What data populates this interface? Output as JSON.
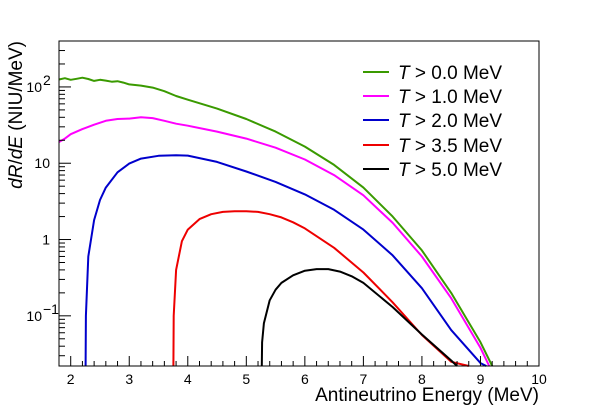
{
  "chart_data": {
    "type": "line",
    "xlabel": "Antineutrino Energy (MeV)",
    "ylabel_parts": {
      "numerator": "dR",
      "slash": "/",
      "denominator": "dE",
      "unit": "(NIU/MeV)"
    },
    "xlim": [
      1.8,
      10.0
    ],
    "ylim": [
      0.022,
      400
    ],
    "yscale": "log",
    "grid": false,
    "legend_position": "top-right",
    "x_ticks": [
      {
        "value": 2,
        "label": "2"
      },
      {
        "value": 3,
        "label": "3"
      },
      {
        "value": 4,
        "label": "4"
      },
      {
        "value": 5,
        "label": "5"
      },
      {
        "value": 6,
        "label": "6"
      },
      {
        "value": 7,
        "label": "7"
      },
      {
        "value": 8,
        "label": "8"
      },
      {
        "value": 9,
        "label": "9"
      },
      {
        "value": 10,
        "label": "10"
      }
    ],
    "y_ticks": [
      {
        "value": 100,
        "base": "10",
        "exp": "2"
      },
      {
        "value": 10,
        "base": "10",
        "exp": ""
      },
      {
        "value": 1,
        "base": "1",
        "exp": ""
      },
      {
        "value": 0.1,
        "base": "10",
        "exp": "−1"
      }
    ],
    "series": [
      {
        "legend_var": "T",
        "legend_rest": " > 0.0 MeV",
        "color": "#3a9a00",
        "x": [
          1.8,
          1.9,
          2.0,
          2.1,
          2.2,
          2.3,
          2.4,
          2.5,
          2.6,
          2.7,
          2.8,
          2.9,
          3.0,
          3.2,
          3.4,
          3.6,
          3.8,
          4.0,
          4.5,
          5.0,
          5.5,
          6.0,
          6.5,
          7.0,
          7.5,
          8.0,
          8.5,
          9.0,
          9.2
        ],
        "y": [
          125,
          130,
          124,
          128,
          132,
          127,
          120,
          124,
          121,
          117,
          119,
          114,
          108,
          104,
          98,
          88,
          76,
          68,
          52,
          38,
          26,
          16.5,
          9.5,
          4.8,
          2.0,
          0.72,
          0.2,
          0.045,
          0.022
        ]
      },
      {
        "legend_var": "T",
        "legend_rest": " > 1.0 MeV",
        "color": "#ff00ff",
        "x": [
          1.8,
          1.9,
          2.0,
          2.2,
          2.4,
          2.6,
          2.8,
          3.0,
          3.2,
          3.4,
          3.6,
          3.8,
          4.0,
          4.5,
          5.0,
          5.5,
          6.0,
          6.5,
          7.0,
          7.5,
          8.0,
          8.5,
          9.0,
          9.15
        ],
        "y": [
          19,
          21,
          24,
          28,
          32,
          36,
          38,
          38.5,
          40,
          39,
          36,
          33,
          31,
          26,
          21,
          16,
          11.2,
          7.0,
          3.8,
          1.65,
          0.6,
          0.17,
          0.038,
          0.022
        ]
      },
      {
        "legend_var": "T",
        "legend_rest": " > 2.0 MeV",
        "color": "#0000cc",
        "x": [
          2.255,
          2.26,
          2.3,
          2.4,
          2.5,
          2.6,
          2.8,
          3.0,
          3.2,
          3.5,
          3.8,
          4.0,
          4.5,
          5.0,
          5.5,
          6.0,
          6.5,
          7.0,
          7.5,
          8.0,
          8.5,
          9.0,
          9.1
        ],
        "y": [
          0.022,
          0.1,
          0.6,
          1.8,
          3.3,
          4.8,
          7.6,
          9.9,
          11.5,
          12.5,
          12.7,
          12.6,
          10.4,
          7.8,
          5.7,
          3.9,
          2.45,
          1.35,
          0.62,
          0.23,
          0.065,
          0.024,
          0.022
        ]
      },
      {
        "legend_var": "T",
        "legend_rest": " > 3.5 MeV",
        "color": "#ee0000",
        "x": [
          3.755,
          3.76,
          3.8,
          3.9,
          4.0,
          4.2,
          4.4,
          4.6,
          4.8,
          5.0,
          5.2,
          5.4,
          5.6,
          5.8,
          6.0,
          6.5,
          7.0,
          7.5,
          8.0,
          8.5,
          8.8
        ],
        "y": [
          0.022,
          0.1,
          0.4,
          0.95,
          1.35,
          1.85,
          2.15,
          2.3,
          2.35,
          2.35,
          2.3,
          2.15,
          1.95,
          1.68,
          1.4,
          0.78,
          0.37,
          0.15,
          0.056,
          0.025,
          0.022
        ]
      },
      {
        "legend_var": "T",
        "legend_rest": " > 5.0 MeV",
        "color": "#000000",
        "x": [
          5.265,
          5.27,
          5.3,
          5.4,
          5.5,
          5.6,
          5.8,
          6.0,
          6.2,
          6.4,
          6.6,
          6.8,
          7.0,
          7.5,
          8.0,
          8.5,
          8.6
        ],
        "y": [
          0.022,
          0.045,
          0.08,
          0.16,
          0.22,
          0.27,
          0.34,
          0.39,
          0.41,
          0.41,
          0.38,
          0.33,
          0.27,
          0.13,
          0.057,
          0.026,
          0.022
        ]
      }
    ]
  }
}
